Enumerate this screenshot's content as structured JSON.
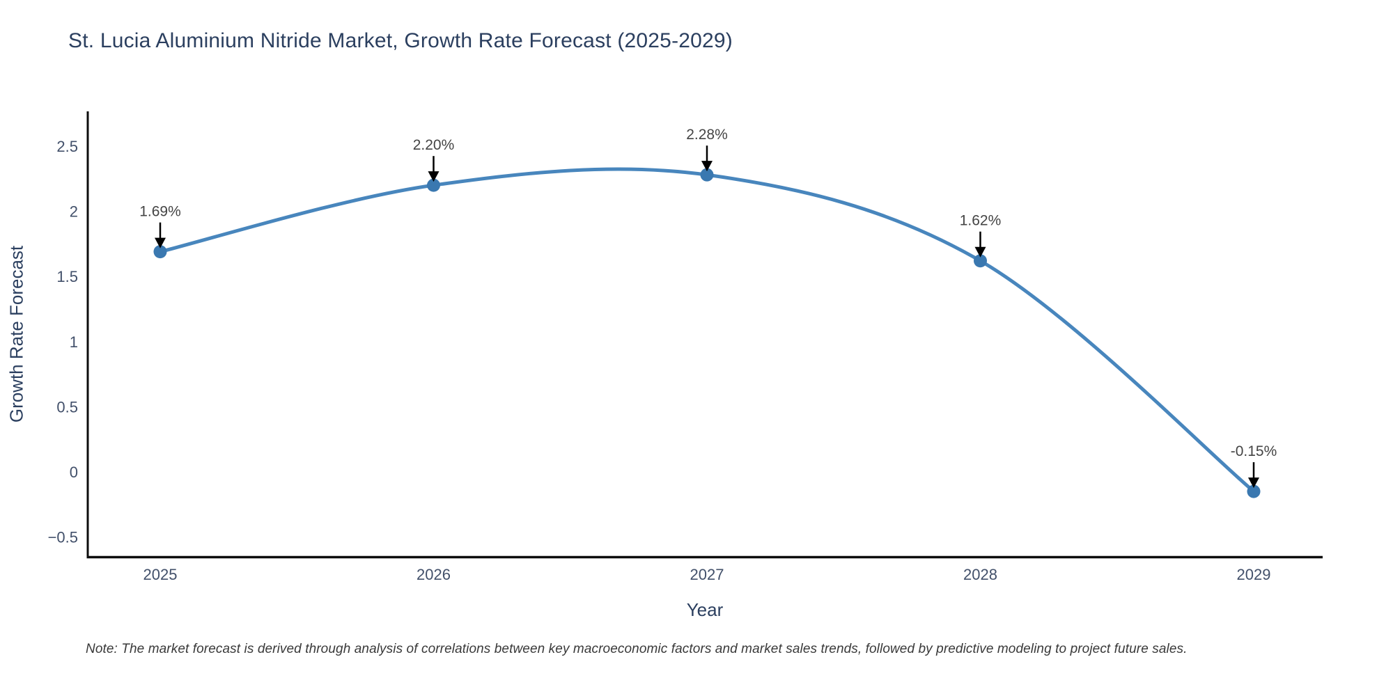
{
  "title": "St. Lucia Aluminium Nitride Market, Growth Rate Forecast (2025-2029)",
  "note": "Note: The market forecast is derived through analysis of correlations between key macroeconomic factors and market sales trends, followed by predictive modeling to project future sales.",
  "chart_data": {
    "type": "line",
    "line_shape": "spline",
    "title": "St. Lucia Aluminium Nitride Market, Growth Rate Forecast (2025-2029)",
    "xlabel": "Year",
    "ylabel": "Growth Rate Forecast",
    "x": [
      2025,
      2026,
      2027,
      2028,
      2029
    ],
    "values": [
      1.69,
      2.2,
      2.28,
      1.62,
      -0.15
    ],
    "point_labels": [
      "1.69%",
      "2.20%",
      "2.28%",
      "1.62%",
      "-0.15%"
    ],
    "x_tick_labels": [
      "2025",
      "2026",
      "2027",
      "2028",
      "2029"
    ],
    "y_tick_values": [
      -0.5,
      0,
      0.5,
      1,
      1.5,
      2,
      2.5
    ],
    "y_tick_labels": [
      "−0.5",
      "0",
      "0.5",
      "1",
      "1.5",
      "2",
      "2.5"
    ],
    "xlim": [
      2024.73,
      2029.25
    ],
    "ylim": [
      -0.66,
      2.77
    ],
    "grid": false,
    "legend": "none",
    "annotation_arrows": true,
    "colors": {
      "line": "#4886bd",
      "marker": "#3a78b0",
      "axis": "#0d0d0d",
      "title": "#2b3f5f",
      "axis_title": "#2b3f5f",
      "tick": "#42506a",
      "annotation": "#444444",
      "arrow": "#000000",
      "background": "#ffffff"
    }
  }
}
